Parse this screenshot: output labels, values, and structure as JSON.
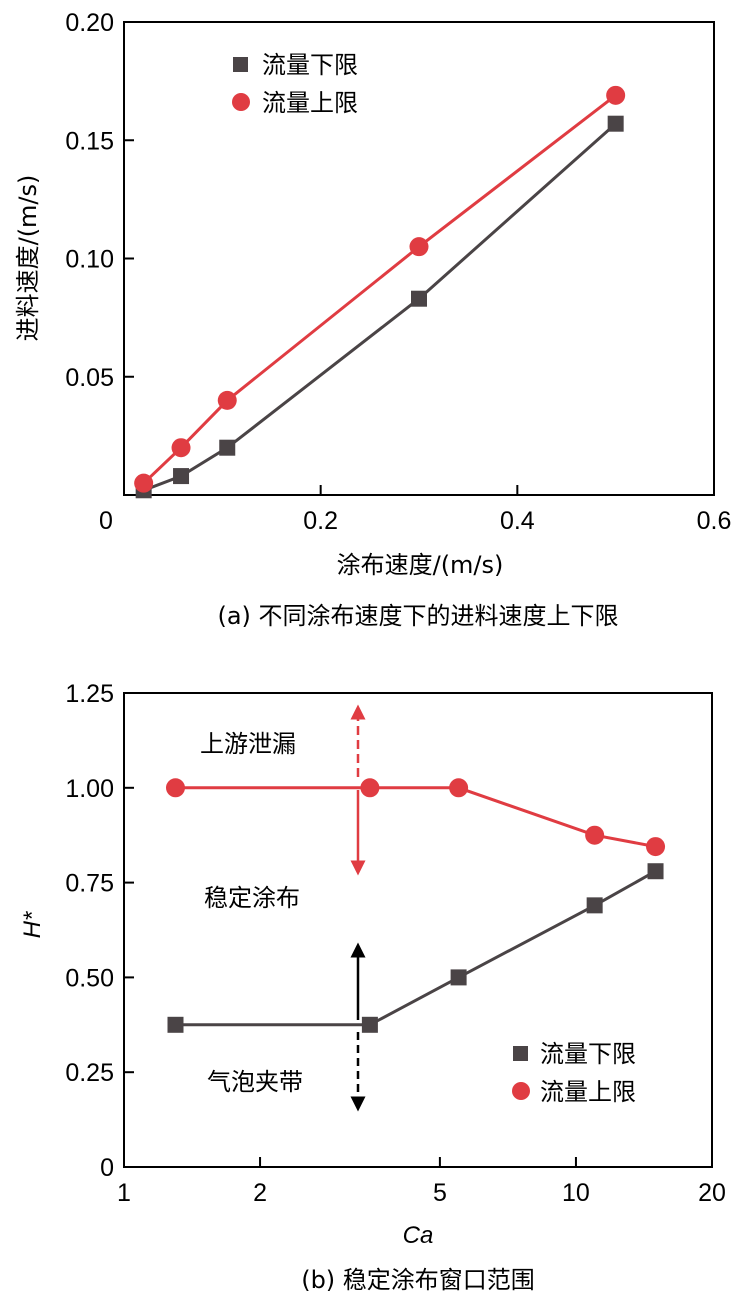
{
  "chart_data": [
    {
      "type": "line",
      "title": "",
      "caption": "(a) 不同涂布速度下的进料速度上下限",
      "xlabel": "涂布速度/(m/s)",
      "ylabel": "进料速度/(m/s)",
      "xlim": [
        0,
        0.6
      ],
      "ylim": [
        0,
        0.2
      ],
      "xticks": [
        "0",
        "0.2",
        "0.4",
        "0.6"
      ],
      "yticks": [
        "0.05",
        "0.10",
        "0.15",
        "0.20"
      ],
      "grid": false,
      "legend_position": "top-left",
      "series": [
        {
          "name": "流量下限",
          "marker": "square",
          "color": "#4a4446",
          "x": [
            0.02,
            0.058,
            0.105,
            0.3,
            0.5
          ],
          "y": [
            0.002,
            0.008,
            0.02,
            0.083,
            0.157
          ]
        },
        {
          "name": "流量上限",
          "marker": "circle",
          "color": "#e03c42",
          "x": [
            0.02,
            0.058,
            0.105,
            0.3,
            0.5
          ],
          "y": [
            0.005,
            0.02,
            0.04,
            0.105,
            0.169
          ]
        }
      ]
    },
    {
      "type": "line",
      "title": "",
      "caption": "(b) 稳定涂布窗口范围",
      "xlabel": "Ca",
      "ylabel": "H*",
      "xscale": "log",
      "xlim": [
        1,
        20
      ],
      "ylim": [
        0,
        1.25
      ],
      "xticks": [
        "1",
        "2",
        "5",
        "10",
        "20"
      ],
      "yticks": [
        "0",
        "0.25",
        "0.50",
        "0.75",
        "1.00",
        "1.25"
      ],
      "grid": false,
      "legend_position": "bottom-right",
      "annotations": [
        "上游泄漏",
        "稳定涂布",
        "气泡夹带"
      ],
      "series": [
        {
          "name": "流量下限",
          "marker": "square",
          "color": "#4a4446",
          "x": [
            1.3,
            3.5,
            5.5,
            11,
            15
          ],
          "y": [
            0.375,
            0.375,
            0.5,
            0.69,
            0.78
          ]
        },
        {
          "name": "流量上限",
          "marker": "circle",
          "color": "#e03c42",
          "x": [
            1.3,
            3.5,
            5.5,
            11,
            15
          ],
          "y": [
            1.0,
            1.0,
            1.0,
            0.875,
            0.845
          ]
        }
      ]
    }
  ]
}
